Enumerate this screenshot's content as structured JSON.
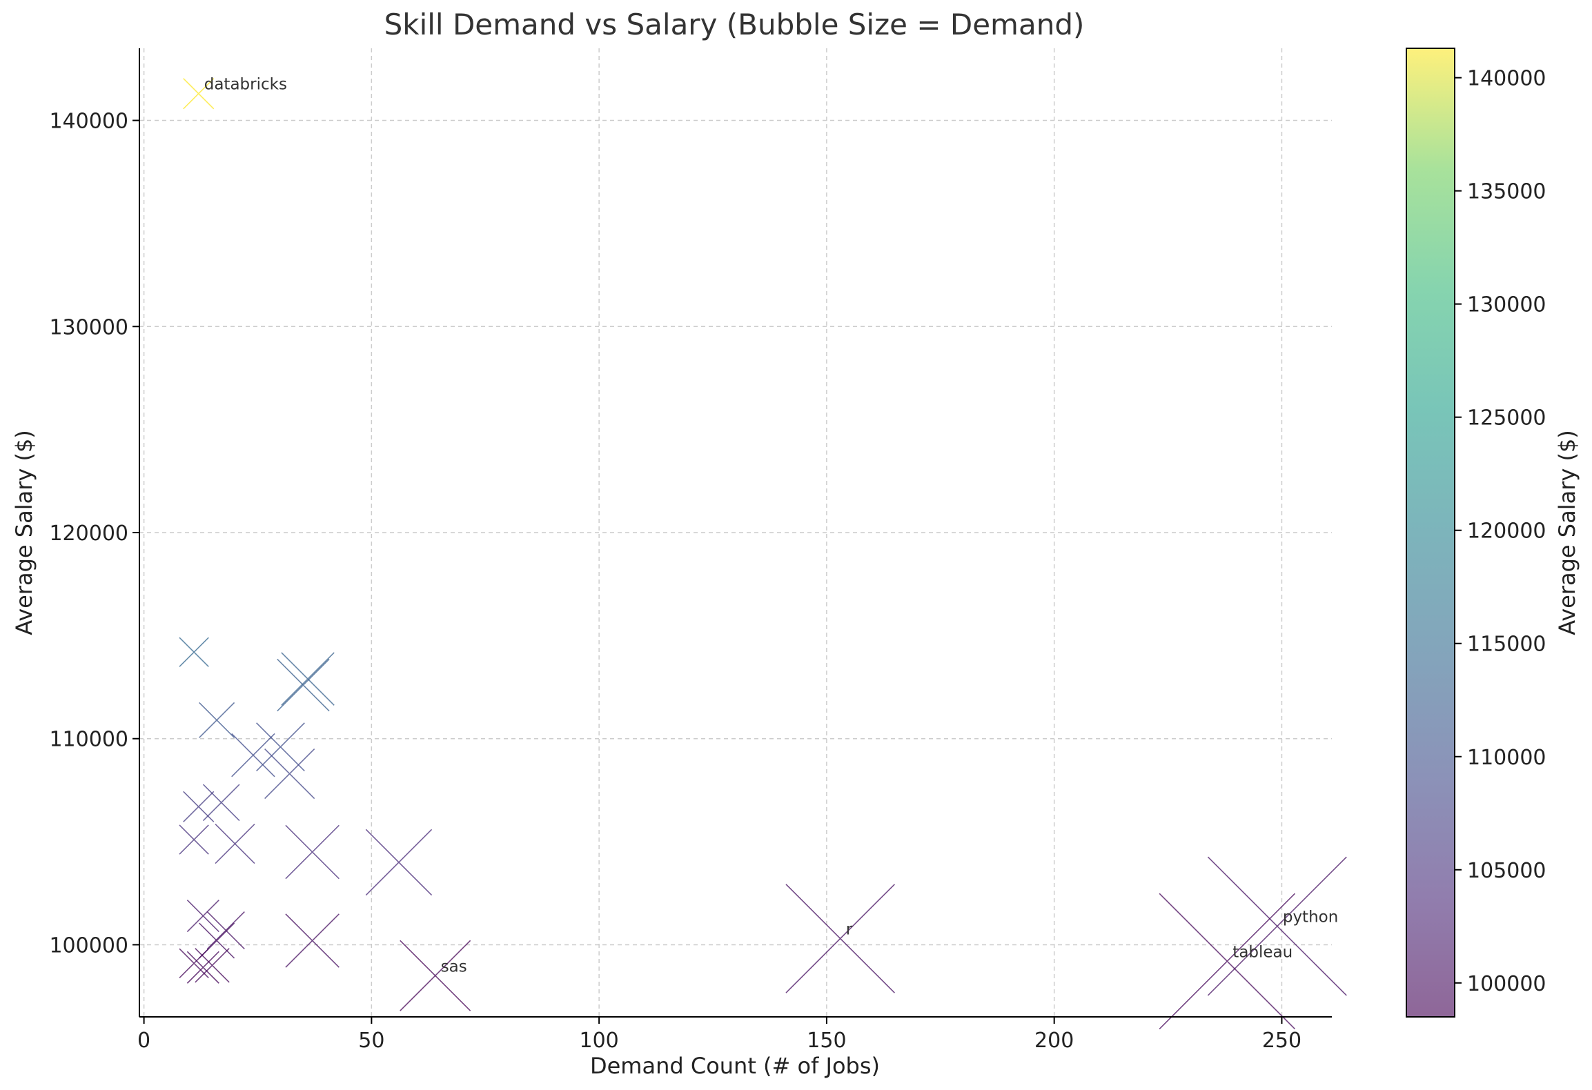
{
  "chart_data": {
    "type": "scatter",
    "title": "Skill Demand vs Salary (Bubble Size = Demand)",
    "xlabel": "Demand Count (# of Jobs)",
    "ylabel": "Average Salary ($)",
    "colorbar_label": "Average Salary ($)",
    "marker": "x",
    "xlim": [
      -1,
      261
    ],
    "ylim": [
      96500,
      143500
    ],
    "x_ticks": [
      0,
      50,
      100,
      150,
      200,
      250
    ],
    "y_ticks": [
      100000,
      110000,
      120000,
      130000,
      140000
    ],
    "colorbar_ticks": [
      100000,
      105000,
      110000,
      115000,
      120000,
      125000,
      130000,
      135000,
      140000
    ],
    "colorbar_range": [
      98500,
      141300
    ],
    "colormap": "viridis",
    "grid": true,
    "points": [
      {
        "x": 12,
        "y": 141300,
        "label": "databricks"
      },
      {
        "x": 11,
        "y": 114200,
        "label": ""
      },
      {
        "x": 36,
        "y": 112900,
        "label": ""
      },
      {
        "x": 35,
        "y": 112600,
        "label": ""
      },
      {
        "x": 16,
        "y": 110900,
        "label": ""
      },
      {
        "x": 30,
        "y": 109600,
        "label": ""
      },
      {
        "x": 24,
        "y": 109200,
        "label": ""
      },
      {
        "x": 32,
        "y": 108300,
        "label": ""
      },
      {
        "x": 17,
        "y": 106900,
        "label": ""
      },
      {
        "x": 12,
        "y": 106700,
        "label": ""
      },
      {
        "x": 11,
        "y": 105100,
        "label": ""
      },
      {
        "x": 20,
        "y": 104900,
        "label": ""
      },
      {
        "x": 37,
        "y": 104500,
        "label": ""
      },
      {
        "x": 56,
        "y": 104000,
        "label": ""
      },
      {
        "x": 13,
        "y": 101400,
        "label": ""
      },
      {
        "x": 18,
        "y": 100700,
        "label": ""
      },
      {
        "x": 16,
        "y": 100200,
        "label": ""
      },
      {
        "x": 37,
        "y": 100200,
        "label": ""
      },
      {
        "x": 11,
        "y": 99100,
        "label": ""
      },
      {
        "x": 13,
        "y": 98900,
        "label": ""
      },
      {
        "x": 15,
        "y": 99000,
        "label": ""
      },
      {
        "x": 64,
        "y": 98500,
        "label": "sas"
      },
      {
        "x": 153,
        "y": 100300,
        "label": "r"
      },
      {
        "x": 249,
        "y": 100900,
        "label": "python"
      },
      {
        "x": 238,
        "y": 99200,
        "label": "tableau"
      }
    ]
  }
}
